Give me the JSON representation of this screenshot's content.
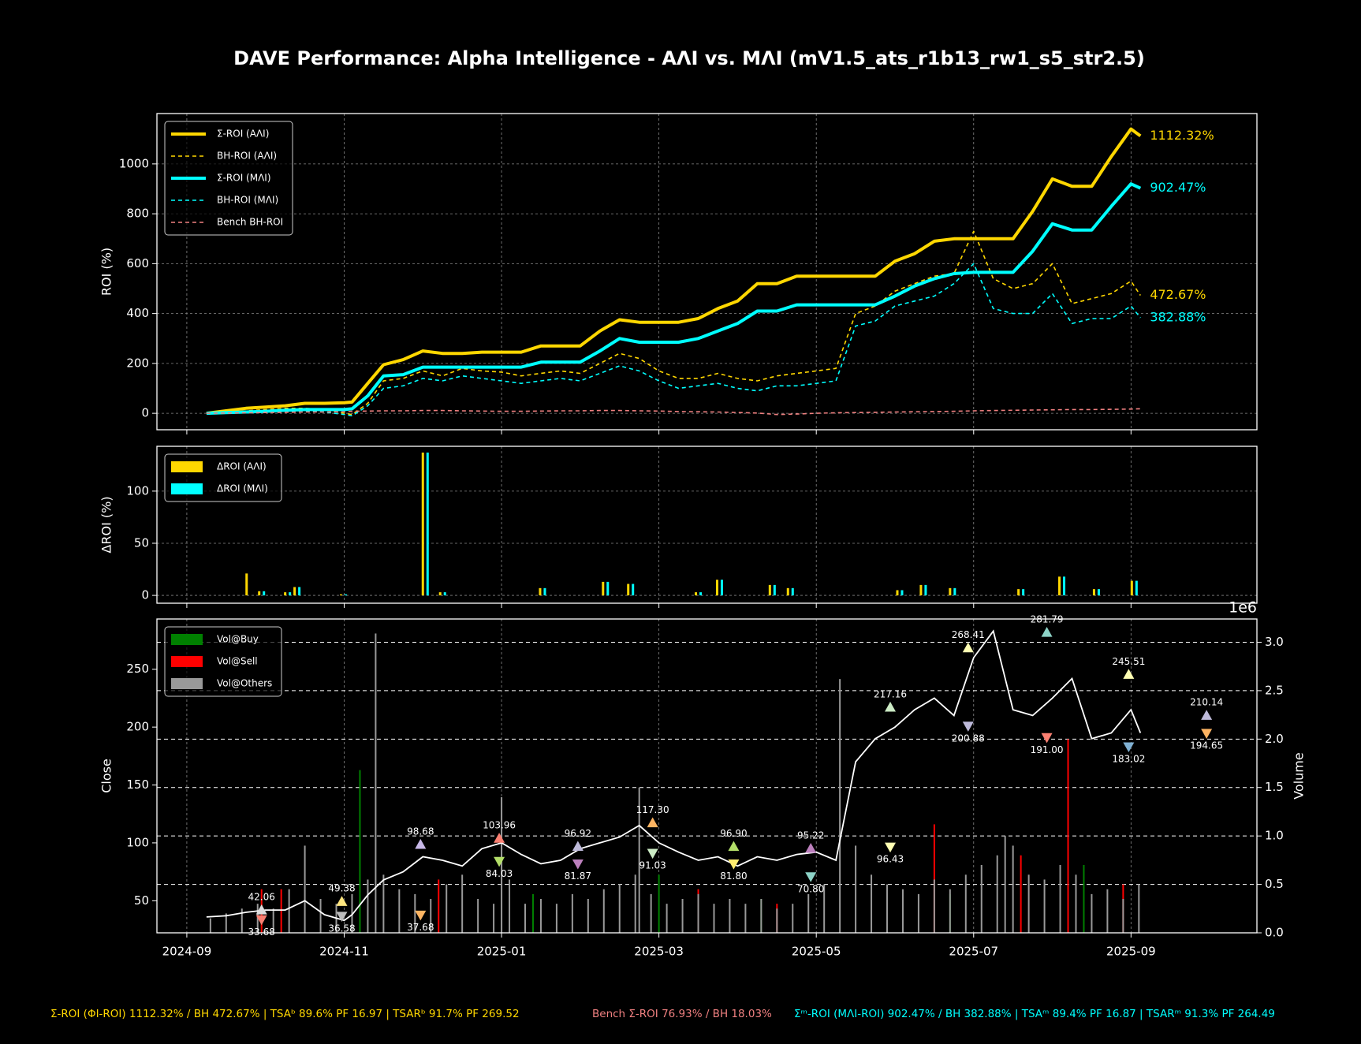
{
  "title": "DAVE Performance: Alpha Intelligence - AΛI vs. MΛI (mV1.5_ats_r1b13_rw1_s5_str2.5)",
  "footer": [
    {
      "text": "Σ-ROI (ΦI-ROI) 1112.32% / BH 472.67%  |  TSAᵇ 89.6% PF 16.97  |  TSARᵇ 91.7% PF 269.52",
      "color": "#ffd700"
    },
    {
      "text": "Bench Σ-ROI 76.93% / BH 18.03%",
      "color": "#f08080"
    },
    {
      "text": "Σᵐ-ROI (MΛI-ROI) 902.47% / BH 382.88%  |  TSAᵐ 89.4% PF 16.87  |  TSARᵐ 91.3% PF 264.49",
      "color": "#00ffff"
    }
  ],
  "chart_data": [
    {
      "type": "line",
      "ylabel": "ROI (%)",
      "grid": "both",
      "legend": "upper left",
      "xlim": [
        -0.38,
        13.6
      ],
      "xticks": [
        0,
        2,
        4,
        6,
        8,
        10,
        12
      ],
      "ylim": [
        -66,
        1202
      ],
      "yticks": [
        0,
        200,
        400,
        600,
        800,
        1000
      ],
      "x": [
        0.25,
        0.5,
        0.75,
        1,
        1.25,
        1.5,
        1.75,
        2,
        2.1,
        2.3,
        2.5,
        2.75,
        3,
        3.25,
        3.5,
        3.75,
        4,
        4.25,
        4.5,
        4.75,
        5,
        5.25,
        5.5,
        5.75,
        6,
        6.25,
        6.5,
        6.75,
        7,
        7.25,
        7.5,
        7.75,
        8,
        8.25,
        8.5,
        8.75,
        9,
        9.25,
        9.5,
        9.75,
        10,
        10.25,
        10.5,
        10.75,
        11,
        11.25,
        11.5,
        11.75,
        12,
        12.12
      ],
      "series": [
        {
          "name": "Σ-ROI (AΛI)",
          "color": "#ffd700",
          "style": "solid",
          "end_label": "1112.32%",
          "values": [
            0,
            10,
            20,
            25,
            30,
            40,
            40,
            42,
            45,
            120,
            195,
            215,
            250,
            240,
            240,
            245,
            245,
            245,
            270,
            270,
            270,
            330,
            375,
            365,
            365,
            365,
            380,
            420,
            450,
            520,
            520,
            550,
            550,
            550,
            550,
            550,
            610,
            640,
            690,
            700,
            700,
            700,
            700,
            810,
            940,
            910,
            910,
            1030,
            1140,
            1112.32
          ]
        },
        {
          "name": "BH-ROI (AΛI)",
          "color": "#ffd700",
          "style": "dashed",
          "end_label": "472.67%",
          "values": [
            0,
            5,
            10,
            15,
            20,
            20,
            15,
            0,
            -5,
            40,
            130,
            140,
            170,
            150,
            180,
            170,
            165,
            150,
            160,
            170,
            160,
            200,
            240,
            220,
            170,
            140,
            140,
            160,
            140,
            130,
            150,
            160,
            170,
            180,
            400,
            430,
            490,
            520,
            550,
            560,
            730,
            540,
            500,
            520,
            600,
            440,
            460,
            480,
            530,
            472.67
          ]
        },
        {
          "name": "Σ-ROI (MΛI)",
          "color": "#00ffff",
          "style": "solid",
          "end_label": "902.47%",
          "values": [
            0,
            3,
            5,
            8,
            12,
            15,
            15,
            15,
            18,
            70,
            150,
            155,
            185,
            185,
            185,
            185,
            185,
            185,
            205,
            205,
            205,
            250,
            300,
            285,
            285,
            285,
            300,
            330,
            360,
            410,
            410,
            435,
            435,
            435,
            435,
            435,
            470,
            510,
            540,
            560,
            565,
            565,
            565,
            650,
            760,
            735,
            735,
            830,
            920,
            902.47
          ]
        },
        {
          "name": "BH-ROI (MΛI)",
          "color": "#00ffff",
          "style": "dashed",
          "end_label": "382.88%",
          "values": [
            0,
            0,
            3,
            5,
            10,
            10,
            5,
            -5,
            -10,
            30,
            100,
            110,
            140,
            130,
            150,
            140,
            130,
            120,
            130,
            140,
            130,
            160,
            190,
            170,
            130,
            100,
            110,
            120,
            100,
            90,
            110,
            110,
            120,
            130,
            350,
            370,
            430,
            450,
            470,
            520,
            600,
            420,
            400,
            400,
            480,
            360,
            380,
            380,
            430,
            382.88
          ]
        },
        {
          "name": "Bench BH-ROI",
          "color": "#f08080",
          "style": "dashed",
          "values": [
            0,
            1,
            2,
            3,
            4,
            5,
            5,
            6,
            8,
            9,
            10,
            10,
            11,
            11,
            10,
            9,
            8,
            8,
            9,
            10,
            10,
            11,
            11,
            10,
            9,
            7,
            6,
            5,
            3,
            1,
            -5,
            -3,
            0,
            2,
            3,
            4,
            5,
            6,
            7,
            8,
            10,
            11,
            12,
            13,
            14,
            15,
            15,
            16,
            17,
            18
          ]
        }
      ]
    },
    {
      "type": "bar",
      "ylabel": "ΔROI (%)",
      "grid": "both",
      "legend": "upper left",
      "xlim": [
        -0.38,
        13.6
      ],
      "xticks": [
        0,
        2,
        4,
        6,
        8,
        10,
        12
      ],
      "ylim": [
        -7.5,
        143
      ],
      "yticks": [
        0,
        50,
        100
      ],
      "x": [
        0.79,
        0.95,
        1.28,
        1.4,
        1.99,
        3.03,
        3.25,
        4.52,
        5.32,
        5.64,
        6.5,
        6.77,
        7.44,
        7.67,
        9.06,
        9.36,
        9.73,
        10.6,
        11.12,
        11.56,
        12.04
      ],
      "series": [
        {
          "name": "ΔROI (AΛI)",
          "color": "#ffd700",
          "values": [
            21,
            4,
            3,
            8,
            1,
            137,
            3,
            7,
            13,
            11,
            3,
            15,
            10,
            7,
            5,
            10,
            7,
            6,
            18,
            6,
            14
          ]
        },
        {
          "name": "ΔROI (MΛI)",
          "color": "#00ffff",
          "values": [
            0,
            4,
            3,
            8,
            1,
            137,
            3,
            7,
            13,
            11,
            3,
            15,
            10,
            7,
            5,
            10,
            7,
            6,
            18,
            6,
            14
          ]
        }
      ]
    },
    {
      "type": "combo",
      "ylabel": "Close",
      "y2label": "Volume",
      "y2_offset_label": "1e6",
      "grid": "x",
      "y2_grid": true,
      "legend": "upper left",
      "xlim": [
        -0.38,
        13.6
      ],
      "xticks": [
        {
          "value": 0,
          "label": "2024-09"
        },
        {
          "value": 2,
          "label": "2024-11"
        },
        {
          "value": 4,
          "label": "2025-01"
        },
        {
          "value": 6,
          "label": "2025-03"
        },
        {
          "value": 8,
          "label": "2025-05"
        },
        {
          "value": 10,
          "label": "2025-07"
        },
        {
          "value": 12,
          "label": "2025-09"
        }
      ],
      "ylim": [
        22.3,
        293.4
      ],
      "yticks": [
        50,
        100,
        150,
        200,
        250
      ],
      "y2lim": [
        0,
        3.24
      ],
      "y2ticks": [
        {
          "value": 0,
          "label": "0.0"
        },
        {
          "value": 0.5,
          "label": "0.5"
        },
        {
          "value": 1,
          "label": "1.0"
        },
        {
          "value": 1.5,
          "label": "1.5"
        },
        {
          "value": 2,
          "label": "2.0"
        },
        {
          "value": 2.5,
          "label": "2.5"
        },
        {
          "value": 3,
          "label": "3.0"
        }
      ],
      "line": {
        "color": "#ffffff",
        "x": [
          0.25,
          0.5,
          0.75,
          1,
          1.25,
          1.5,
          1.75,
          2,
          2.1,
          2.3,
          2.5,
          2.75,
          3,
          3.25,
          3.5,
          3.75,
          4,
          4.25,
          4.5,
          4.75,
          5,
          5.25,
          5.5,
          5.75,
          6,
          6.25,
          6.5,
          6.75,
          7,
          7.25,
          7.5,
          7.75,
          8,
          8.25,
          8.5,
          8.75,
          9,
          9.25,
          9.5,
          9.75,
          10,
          10.25,
          10.5,
          10.75,
          11,
          11.25,
          11.5,
          11.75,
          12,
          12.12
        ],
        "values": [
          36,
          37,
          40,
          42,
          42,
          50,
          38,
          33,
          38,
          55,
          68,
          75,
          88,
          85,
          80,
          95,
          100,
          90,
          82,
          85,
          95,
          100,
          105,
          115,
          100,
          92,
          85,
          88,
          80,
          88,
          85,
          90,
          92,
          85,
          170,
          190,
          200,
          215,
          225,
          210,
          260,
          283,
          215,
          210,
          225,
          242,
          190,
          195,
          215,
          195
        ]
      },
      "series": [
        {
          "name": "Vol@Buy",
          "color": "#008000",
          "axis": "y2",
          "x": [
            0.95,
            2.2,
            4.4,
            6.0,
            7.3,
            9.7,
            11.4
          ],
          "values": [
            0.35,
            1.68,
            0.4,
            0.6,
            0.35,
            0.4,
            0.7
          ]
        },
        {
          "name": "Vol@Sell",
          "color": "#ff0000",
          "axis": "y2",
          "x": [
            0.95,
            1.2,
            3.2,
            6.5,
            7.5,
            9.5,
            10.6,
            11.2,
            11.9
          ],
          "values": [
            0.45,
            0.45,
            0.55,
            0.45,
            0.3,
            1.12,
            0.8,
            2.0,
            0.5
          ]
        },
        {
          "name": "Vol@Others",
          "color": "#999999",
          "axis": "y2",
          "x": [
            0.3,
            0.5,
            0.7,
            0.9,
            1.1,
            1.3,
            1.5,
            1.7,
            1.9,
            2.1,
            2.3,
            2.4,
            2.5,
            2.7,
            2.9,
            3.1,
            3.3,
            3.5,
            3.7,
            3.9,
            4.0,
            4.1,
            4.3,
            4.5,
            4.7,
            4.9,
            5.1,
            5.3,
            5.5,
            5.7,
            5.75,
            5.9,
            6.1,
            6.3,
            6.5,
            6.7,
            6.9,
            7.1,
            7.3,
            7.5,
            7.7,
            7.9,
            8.1,
            8.3,
            8.5,
            8.7,
            8.9,
            9.1,
            9.3,
            9.5,
            9.7,
            9.9,
            10.1,
            10.3,
            10.4,
            10.5,
            10.7,
            10.9,
            11.1,
            11.3,
            11.5,
            11.7,
            11.9,
            12.1
          ],
          "values": [
            0.15,
            0.2,
            0.25,
            0.3,
            0.25,
            0.45,
            0.9,
            0.35,
            0.3,
            0.4,
            0.55,
            3.09,
            0.6,
            0.45,
            0.4,
            0.35,
            0.5,
            0.6,
            0.35,
            0.3,
            1.4,
            0.55,
            0.3,
            0.35,
            0.3,
            0.4,
            0.35,
            0.45,
            0.5,
            0.6,
            1.5,
            0.4,
            0.3,
            0.35,
            0.4,
            0.3,
            0.35,
            0.3,
            0.35,
            0.25,
            0.3,
            0.4,
            0.5,
            2.62,
            0.9,
            0.6,
            0.5,
            0.45,
            0.4,
            0.55,
            0.45,
            0.6,
            0.7,
            0.8,
            1.0,
            0.9,
            0.6,
            0.55,
            0.7,
            0.6,
            0.4,
            0.45,
            0.35,
            0.5
          ]
        }
      ],
      "markers": {
        "x": [
          0.95,
          0.95,
          1.97,
          1.97,
          2.97,
          2.97,
          3.97,
          3.97,
          4.97,
          4.97,
          5.92,
          5.92,
          6.95,
          6.95,
          7.93,
          7.93,
          8.94,
          8.94,
          9.93,
          9.93,
          10.93,
          10.93,
          11.97,
          11.97,
          12.96,
          12.96
        ],
        "values": [
          42.06,
          33.68,
          49.38,
          36.58,
          98.68,
          37.68,
          103.96,
          84.03,
          96.92,
          81.87,
          117.3,
          91.03,
          96.9,
          81.8,
          95.22,
          70.8,
          217.16,
          96.43,
          268.41,
          200.88,
          281.79,
          191.0,
          245.51,
          183.02,
          210.14,
          194.65
        ],
        "value_labels": [
          "42.06",
          "33.68",
          "49.38",
          "36.58",
          "98.68",
          "37.68",
          "103.96",
          "84.03",
          "96.92",
          "81.87",
          "117.30",
          "91.03",
          "96.90",
          "81.80",
          "95.22",
          "70.80",
          "217.16",
          "96.43",
          "268.41",
          "200.88",
          "281.79",
          "191.00",
          "245.51",
          "183.02",
          "210.14",
          "194.65"
        ],
        "direction": [
          "up",
          "down",
          "up",
          "down",
          "up",
          "down",
          "up",
          "down",
          "up",
          "down",
          "up",
          "down",
          "up",
          "down",
          "up",
          "down",
          "up",
          "down",
          "up",
          "down",
          "up",
          "down",
          "up",
          "down",
          "up",
          "down"
        ],
        "colors": [
          "#dddddd",
          "#fa8072",
          "#ffe680",
          "#bbbbbb",
          "#c8b8e8",
          "#fdb462",
          "#fb8072",
          "#b3de69",
          "#bebada",
          "#bc80bd",
          "#fdb462",
          "#ccebc5",
          "#b3de69",
          "#ffed6f",
          "#bc80bd",
          "#8dd3c7",
          "#ccebc5",
          "#ffffb3",
          "#ffffb3",
          "#bebada",
          "#8dd3c7",
          "#fb8072",
          "#ffffb3",
          "#80b1d3",
          "#bebada",
          "#fdb462"
        ]
      }
    }
  ]
}
